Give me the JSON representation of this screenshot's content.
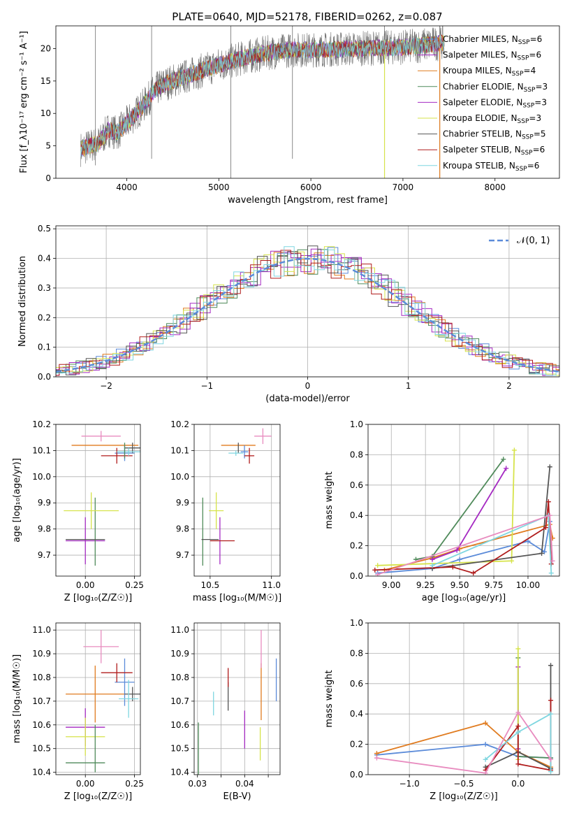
{
  "figure_title": "PLATE=0640, MJD=52178, FIBERID=0262, z=0.087",
  "colors": {
    "Chabrier MILES": "#5b8bd9",
    "Salpeter MILES": "#a52ac2",
    "Kroupa MILES": "#e07b1f",
    "Chabrier ELODIE": "#4f8a5a",
    "Salpeter ELODIE": "#a52ac2",
    "Kroupa ELODIE": "#d6e34a",
    "Chabrier STELIB": "#555555",
    "Salpeter STELIB": "#b01c1c",
    "Kroupa STELIB": "#7fd6e0",
    "gauss": "#5b8bd9",
    "extra_pink": "#e88bbf"
  },
  "chart_data": [
    {
      "id": "spectrum",
      "type": "line",
      "xlabel": "wavelength [Angstrom, rest frame]",
      "ylabel": "Flux [f_λ10⁻¹⁷ erg cm⁻² s⁻¹ A⁻¹]",
      "xlim": [
        3230,
        8700
      ],
      "ylim": [
        0,
        23.5
      ],
      "xticks": [
        4000,
        5000,
        6000,
        7000,
        8000
      ],
      "yticks": [
        0,
        5,
        10,
        15,
        20
      ],
      "grid": false,
      "legend_position": "right",
      "legend": [
        "Chabrier MILES, N_SSP=6",
        "Salpeter MILES, N_SSP=6",
        "Kroupa MILES, N_SSP=4",
        "Chabrier ELODIE, N_SSP=3",
        "Salpeter ELODIE, N_SSP=3",
        "Kroupa ELODIE, N_SSP=3",
        "Chabrier STELIB, N_SSP=5",
        "Salpeter STELIB, N_SSP=6",
        "Kroupa STELIB, N_SSP=6"
      ],
      "legend_keys": [
        "Chabrier MILES",
        "Salpeter MILES",
        "Kroupa MILES",
        "Chabrier ELODIE",
        "Salpeter ELODIE",
        "Kroupa ELODIE",
        "Chabrier STELIB",
        "Salpeter STELIB",
        "Kroupa STELIB"
      ],
      "continuum": [
        [
          3500,
          4.5
        ],
        [
          3700,
          5.5
        ],
        [
          3800,
          7.5
        ],
        [
          3900,
          7
        ],
        [
          4000,
          8.5
        ],
        [
          4100,
          10
        ],
        [
          4200,
          11.5
        ],
        [
          4300,
          13.5
        ],
        [
          4400,
          14.5
        ],
        [
          4600,
          15.5
        ],
        [
          4800,
          16.5
        ],
        [
          5000,
          17.5
        ],
        [
          5200,
          18.3
        ],
        [
          5400,
          19
        ],
        [
          5600,
          19.5
        ],
        [
          5800,
          19.8
        ],
        [
          6000,
          19.8
        ],
        [
          6500,
          20
        ],
        [
          7000,
          20.2
        ],
        [
          7200,
          20.5
        ],
        [
          7500,
          21
        ]
      ],
      "spikes": [
        [
          5130,
          0
        ],
        [
          5800,
          3
        ],
        [
          6800,
          0
        ],
        [
          7400,
          0
        ],
        [
          4270,
          3
        ],
        [
          3660,
          2
        ]
      ]
    },
    {
      "id": "residuals",
      "type": "histogram",
      "xlabel": "(data-model)/error",
      "ylabel": "Normed distribution",
      "xlim": [
        -2.5,
        2.5
      ],
      "ylim": [
        0,
        0.51
      ],
      "xticks": [
        -2,
        -1,
        0,
        1,
        2
      ],
      "yticks": [
        0.0,
        0.1,
        0.2,
        0.3,
        0.4,
        0.5
      ],
      "grid": true,
      "legend_label": "𝒩(0, 1)",
      "gaussian": {
        "mu": 0,
        "sigma": 1
      }
    },
    {
      "id": "z_age",
      "type": "scatter",
      "xlabel": "Z [log₁₀(Z/Z☉)]",
      "ylabel": "age  [log₁₀(age/yr)]",
      "xlim": [
        -0.15,
        0.28
      ],
      "ylim": [
        9.62,
        10.2
      ],
      "xticks": [
        0.0,
        0.25
      ],
      "yticks": [
        9.7,
        9.8,
        9.9,
        10.0,
        10.1,
        10.2
      ],
      "grid": true,
      "points": [
        {
          "k": "Salpeter MILES",
          "x": 0.0,
          "xe": 0.1,
          "y": 9.755,
          "ye": 0.09
        },
        {
          "k": "Chabrier ELODIE",
          "x": 0.05,
          "xe": 0.0,
          "y": 9.79,
          "ye": 0.13
        },
        {
          "k": "Kroupa ELODIE",
          "x": 0.03,
          "xe": 0.14,
          "y": 9.87,
          "ye": 0.07
        },
        {
          "k": "Chabrier STELIB",
          "x": 0.0,
          "xe": 0.1,
          "y": 9.76,
          "ye": 0.0
        },
        {
          "k": "Kroupa MILES",
          "x": 0.1,
          "xe": 0.17,
          "y": 10.12,
          "ye": 0.0
        },
        {
          "k": "extra_pink",
          "x": 0.08,
          "xe": 0.1,
          "y": 10.155,
          "ye": 0.02
        },
        {
          "k": "Chabrier MILES",
          "x": 0.2,
          "xe": 0.05,
          "y": 10.09,
          "ye": 0.03
        },
        {
          "k": "Salpeter STELIB",
          "x": 0.16,
          "xe": 0.08,
          "y": 10.08,
          "ye": 0.03
        },
        {
          "k": "Chabrier STELIB",
          "x": 0.24,
          "xe": 0.04,
          "y": 10.11,
          "ye": 0.02
        },
        {
          "k": "Kroupa STELIB",
          "x": 0.22,
          "xe": 0.06,
          "y": 10.095,
          "ye": 0.015
        },
        {
          "k": "Chabrier ELODIE",
          "x": 0.2,
          "xe": 0.0,
          "y": 10.1,
          "ye": 0.03
        }
      ]
    },
    {
      "id": "mass_age",
      "type": "scatter",
      "xlabel": "mass [log₁₀(M/M☉)]",
      "ylabel": "",
      "xlim": [
        10.37,
        11.07
      ],
      "ylim": [
        9.62,
        10.2
      ],
      "xticks": [
        10.5,
        11.0
      ],
      "yticks": [
        9.7,
        9.8,
        9.9,
        10.0,
        10.1,
        10.2
      ],
      "grid": true,
      "points": [
        {
          "k": "Salpeter MILES",
          "x": 10.58,
          "xe": 0.0,
          "y": 9.755,
          "ye": 0.09
        },
        {
          "k": "Chabrier ELODIE",
          "x": 10.44,
          "xe": 0.0,
          "y": 9.79,
          "ye": 0.13
        },
        {
          "k": "Kroupa ELODIE",
          "x": 10.55,
          "xe": 0.06,
          "y": 9.87,
          "ye": 0.07
        },
        {
          "k": "Chabrier STELIB",
          "x": 10.5,
          "xe": 0.07,
          "y": 9.76,
          "ye": 0.0
        },
        {
          "k": "Salpeter STELIB",
          "x": 10.6,
          "xe": 0.1,
          "y": 9.755,
          "ye": 0.0
        },
        {
          "k": "Kroupa MILES",
          "x": 10.73,
          "xe": 0.14,
          "y": 10.12,
          "ye": 0.0
        },
        {
          "k": "extra_pink",
          "x": 10.93,
          "xe": 0.07,
          "y": 10.155,
          "ye": 0.03
        },
        {
          "k": "Chabrier MILES",
          "x": 10.78,
          "xe": 0.03,
          "y": 10.095,
          "ye": 0.025
        },
        {
          "k": "Salpeter STELIB",
          "x": 10.82,
          "xe": 0.04,
          "y": 10.08,
          "ye": 0.03
        },
        {
          "k": "Chabrier STELIB",
          "x": 10.73,
          "xe": 0.0,
          "y": 10.11,
          "ye": 0.02
        },
        {
          "k": "Kroupa STELIB",
          "x": 10.71,
          "xe": 0.06,
          "y": 10.09,
          "ye": 0.01
        }
      ]
    },
    {
      "id": "age_weight",
      "type": "line",
      "xlabel": "age  [log₁₀(age/yr)]",
      "ylabel": "mass weight",
      "xlim": [
        8.83,
        10.23
      ],
      "ylim": [
        0,
        1.0
      ],
      "xticks": [
        9.0,
        9.25,
        9.5,
        9.75,
        10.0
      ],
      "xtick_labels": [
        "9.00",
        "9.25",
        "9.50",
        "9.75",
        "10.00"
      ],
      "yticks": [
        0.0,
        0.2,
        0.4,
        0.6,
        0.8,
        1.0
      ],
      "grid": true,
      "series": [
        {
          "k": "Chabrier MILES",
          "x": [
            8.9,
            9.3,
            9.5,
            10.0,
            10.12,
            10.16
          ],
          "y": [
            0.02,
            0.05,
            0.11,
            0.23,
            0.16,
            0.36
          ]
        },
        {
          "k": "Kroupa MILES",
          "x": [
            8.95,
            9.3,
            9.5,
            10.16,
            10.18
          ],
          "y": [
            0.04,
            0.12,
            0.18,
            0.34,
            0.25
          ]
        },
        {
          "k": "Chabrier ELODIE",
          "x": [
            9.18,
            9.3,
            9.82
          ],
          "y": [
            0.11,
            0.13,
            0.77
          ]
        },
        {
          "k": "Salpeter ELODIE",
          "x": [
            9.3,
            9.48,
            9.84
          ],
          "y": [
            0.11,
            0.17,
            0.71
          ]
        },
        {
          "k": "Kroupa ELODIE",
          "x": [
            8.9,
            9.88,
            9.9
          ],
          "y": [
            0.07,
            0.1,
            0.83
          ]
        },
        {
          "k": "Chabrier STELIB",
          "x": [
            9.3,
            10.1,
            10.16
          ],
          "y": [
            0.05,
            0.15,
            0.72
          ]
        },
        {
          "k": "Salpeter STELIB",
          "x": [
            8.88,
            9.45,
            9.6,
            10.13,
            10.15,
            10.17
          ],
          "y": [
            0.04,
            0.06,
            0.02,
            0.32,
            0.49,
            0.08
          ]
        },
        {
          "k": "Kroupa STELIB",
          "x": [
            9.3,
            10.15,
            10.17
          ],
          "y": [
            0.07,
            0.4,
            0.02
          ]
        },
        {
          "k": "extra_pink",
          "x": [
            8.9,
            10.16,
            10.18
          ],
          "y": [
            0.01,
            0.4,
            0.1
          ]
        }
      ]
    },
    {
      "id": "z_mass",
      "type": "scatter",
      "xlabel": "Z [log₁₀(Z/Z☉)]",
      "ylabel": "mass [log₁₀(M/M☉)]",
      "xlim": [
        -0.15,
        0.28
      ],
      "ylim": [
        10.39,
        11.03
      ],
      "xticks": [
        0.0,
        0.25
      ],
      "yticks": [
        10.4,
        10.5,
        10.6,
        10.7,
        10.8,
        10.9,
        11.0
      ],
      "grid": true,
      "points": [
        {
          "k": "extra_pink",
          "x": 0.08,
          "xe": 0.09,
          "y": 10.93,
          "ye": 0.07
        },
        {
          "k": "Kroupa MILES",
          "x": 0.05,
          "xe": 0.15,
          "y": 10.73,
          "ye": 0.12
        },
        {
          "k": "Chabrier MILES",
          "x": 0.2,
          "xe": 0.05,
          "y": 10.78,
          "ye": 0.1
        },
        {
          "k": "Salpeter STELIB",
          "x": 0.16,
          "xe": 0.08,
          "y": 10.82,
          "ye": 0.04
        },
        {
          "k": "Chabrier STELIB",
          "x": 0.24,
          "xe": 0.04,
          "y": 10.73,
          "ye": 0.03
        },
        {
          "k": "Kroupa STELIB",
          "x": 0.22,
          "xe": 0.05,
          "y": 10.71,
          "ye": 0.08
        },
        {
          "k": "Salpeter MILES",
          "x": 0.0,
          "xe": 0.1,
          "y": 10.59,
          "ye": 0.08
        },
        {
          "k": "Kroupa ELODIE",
          "x": 0.0,
          "xe": 0.1,
          "y": 10.55,
          "ye": 0.08
        },
        {
          "k": "Chabrier ELODIE",
          "x": 0.0,
          "xe": 0.1,
          "y": 10.44,
          "ye": 0.0
        },
        {
          "k": "Chabrier ELODIE",
          "x": 0.05,
          "xe": 0.0,
          "y": 10.5,
          "ye": 0.1
        }
      ]
    },
    {
      "id": "ebv_mass",
      "type": "scatter",
      "xlabel": "E(B-V)",
      "ylabel": "",
      "xlim": [
        0.0293,
        0.0475
      ],
      "ylim": [
        10.39,
        11.03
      ],
      "xticks": [
        0.03,
        0.035,
        0.04,
        0.045
      ],
      "xtick_labels": [
        "0.03",
        "",
        "0.04",
        ""
      ],
      "yticks": [
        10.4,
        10.5,
        10.6,
        10.7,
        10.8,
        10.9,
        11.0
      ],
      "grid": true,
      "points": [
        {
          "k": "Chabrier ELODIE",
          "x": 0.0302,
          "xe": 0.0,
          "y": 10.5,
          "ye": 0.11
        },
        {
          "k": "Kroupa STELIB",
          "x": 0.0334,
          "xe": 0.0,
          "y": 10.69,
          "ye": 0.05
        },
        {
          "k": "Chabrier STELIB",
          "x": 0.0365,
          "xe": 0.0,
          "y": 10.72,
          "ye": 0.06
        },
        {
          "k": "Salpeter STELIB",
          "x": 0.0365,
          "xe": 0.0,
          "y": 10.8,
          "ye": 0.04
        },
        {
          "k": "Salpeter MILES",
          "x": 0.04,
          "xe": 0.0,
          "y": 10.58,
          "ye": 0.08
        },
        {
          "k": "Kroupa ELODIE",
          "x": 0.0433,
          "xe": 0.0,
          "y": 10.52,
          "ye": 0.07
        },
        {
          "k": "Kroupa MILES",
          "x": 0.0435,
          "xe": 0.0,
          "y": 10.74,
          "ye": 0.12
        },
        {
          "k": "extra_pink",
          "x": 0.0435,
          "xe": 0.0,
          "y": 10.92,
          "ye": 0.08
        },
        {
          "k": "Chabrier MILES",
          "x": 0.0467,
          "xe": 0.0,
          "y": 10.79,
          "ye": 0.09
        }
      ]
    },
    {
      "id": "z_weight",
      "type": "line",
      "xlabel": "Z [log₁₀(Z/Z☉)]",
      "ylabel": "mass weight",
      "xlim": [
        -1.38,
        0.38
      ],
      "ylim": [
        0,
        1.0
      ],
      "xticks": [
        -1.0,
        -0.5,
        0.0
      ],
      "xtick_labels": [
        "−1.0",
        "−0.5",
        "0.0"
      ],
      "yticks": [
        0.0,
        0.2,
        0.4,
        0.6,
        0.8,
        1.0
      ],
      "grid": true,
      "series": [
        {
          "k": "Chabrier MILES",
          "x": [
            -1.3,
            -0.3,
            0.0,
            0.3
          ],
          "y": [
            0.13,
            0.2,
            0.12,
            0.11
          ]
        },
        {
          "k": "Kroupa MILES",
          "x": [
            -1.3,
            -0.3,
            0.0,
            0.3
          ],
          "y": [
            0.14,
            0.34,
            0.15,
            0.05
          ]
        },
        {
          "k": "Chabrier ELODIE",
          "x": [
            0.0,
            0.0,
            0.3
          ],
          "y": [
            0.77,
            0.12,
            0.11
          ]
        },
        {
          "k": "Salpeter ELODIE",
          "x": [
            0.0,
            0.0
          ],
          "y": [
            0.71,
            0.17
          ]
        },
        {
          "k": "Kroupa ELODIE",
          "x": [
            0.0,
            0.0
          ],
          "y": [
            0.83,
            0.1
          ]
        },
        {
          "k": "Chabrier STELIB",
          "x": [
            -0.3,
            0.0,
            0.3,
            0.3
          ],
          "y": [
            0.05,
            0.15,
            0.04,
            0.72
          ]
        },
        {
          "k": "Salpeter STELIB",
          "x": [
            -0.3,
            0.0,
            0.0,
            0.3,
            0.3
          ],
          "y": [
            0.03,
            0.32,
            0.07,
            0.03,
            0.49
          ]
        },
        {
          "k": "Kroupa STELIB",
          "x": [
            -0.3,
            0.0,
            0.3,
            0.3
          ],
          "y": [
            0.1,
            0.28,
            0.4,
            0.02
          ]
        },
        {
          "k": "extra_pink",
          "x": [
            -1.3,
            -0.3,
            0.0,
            0.3
          ],
          "y": [
            0.11,
            0.01,
            0.41,
            0.1
          ]
        }
      ]
    }
  ]
}
